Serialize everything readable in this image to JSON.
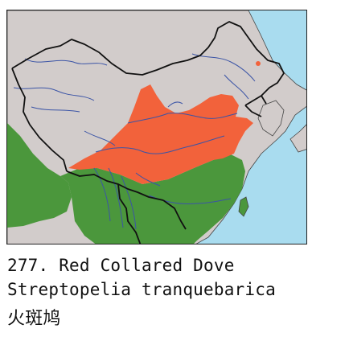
{
  "caption": {
    "line1": "277. Red Collared Dove",
    "line2": "Streptopelia tranquebarica",
    "line3": "火斑鸠"
  },
  "colors": {
    "sea": "#a9dcef",
    "land": "#d2cccb",
    "breeding_range": "#f2623b",
    "resident_range": "#4b973c",
    "river": "#3b54a6",
    "border": "#111111"
  },
  "legend_icons": [
    "range-breeding",
    "range-resident",
    "record-dot"
  ]
}
